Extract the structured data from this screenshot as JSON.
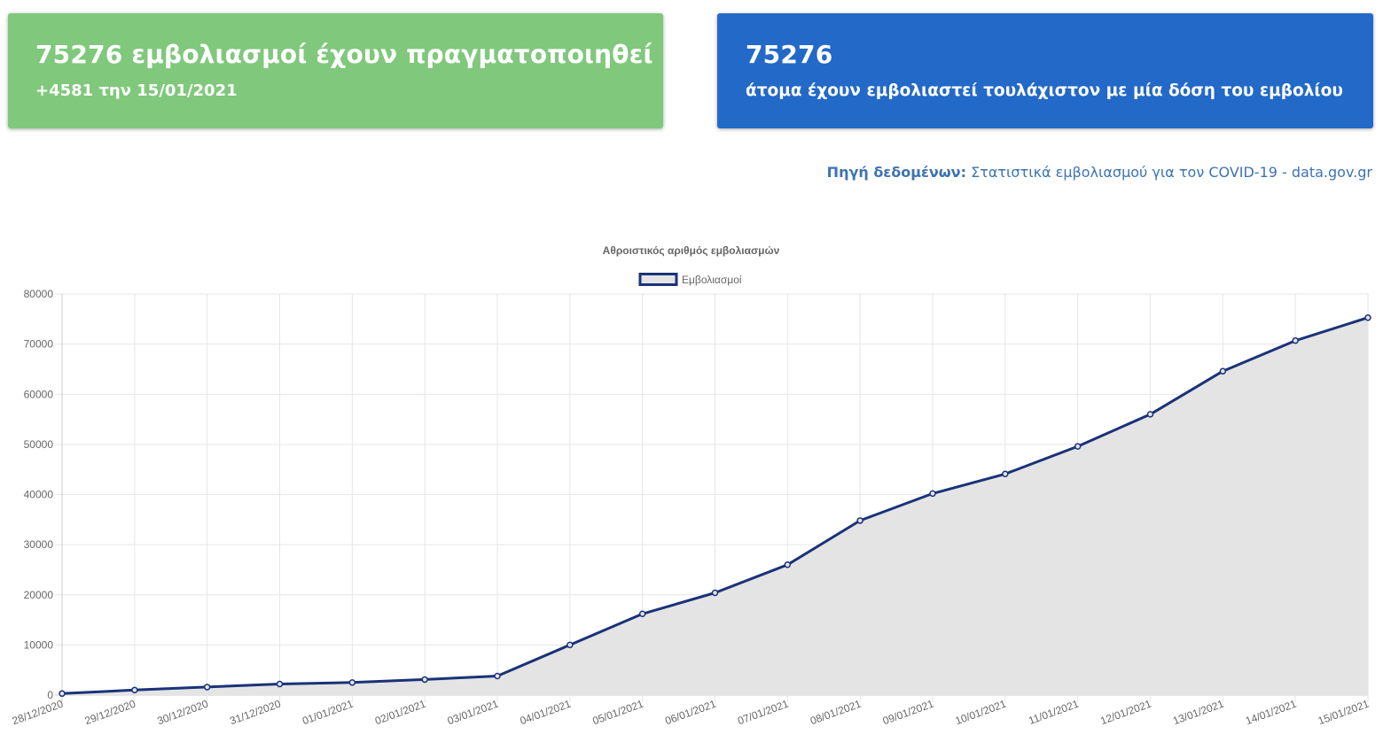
{
  "cards": {
    "total": {
      "headline": "75276 εμβολιασμοί έχουν πραγματοποιηθεί",
      "sub": "+4581 την 15/01/2021",
      "color": "#80c87c"
    },
    "people": {
      "headline": "75276",
      "sub": "άτομα έχουν εμβολιαστεί τουλάχιστον με μία δόση του εμβολίου",
      "color": "#2369c8"
    }
  },
  "source": {
    "label": "Πηγή δεδομένων:",
    "link_text": "Στατιστικά εμβολιασμού για τον COVID-19 - data.gov.gr",
    "color": "#3d73b2"
  },
  "chart_data": {
    "type": "line",
    "title": "Αθροιστικός αριθμός εμβολιασμών",
    "xlabel": "",
    "ylabel": "",
    "categories": [
      "28/12/2020",
      "29/12/2020",
      "30/12/2020",
      "31/12/2020",
      "01/01/2021",
      "02/01/2021",
      "03/01/2021",
      "04/01/2021",
      "05/01/2021",
      "06/01/2021",
      "07/01/2021",
      "08/01/2021",
      "09/01/2021",
      "10/01/2021",
      "11/01/2021",
      "12/01/2021",
      "13/01/2021",
      "14/01/2021",
      "15/01/2021"
    ],
    "series": [
      {
        "name": "Εμβολιασμοί",
        "values": [
          300,
          1000,
          1600,
          2200,
          2500,
          3100,
          3800,
          10000,
          16200,
          20400,
          26000,
          34800,
          40200,
          44100,
          49600,
          56000,
          64600,
          70700,
          75276
        ],
        "line_color": "#1a3278",
        "fill_color": "#e4e4e4"
      }
    ],
    "ylim": [
      0,
      80000
    ],
    "yticks": [
      0,
      10000,
      20000,
      30000,
      40000,
      50000,
      60000,
      70000,
      80000
    ],
    "grid": true,
    "legend_position": "top",
    "fill": true
  }
}
